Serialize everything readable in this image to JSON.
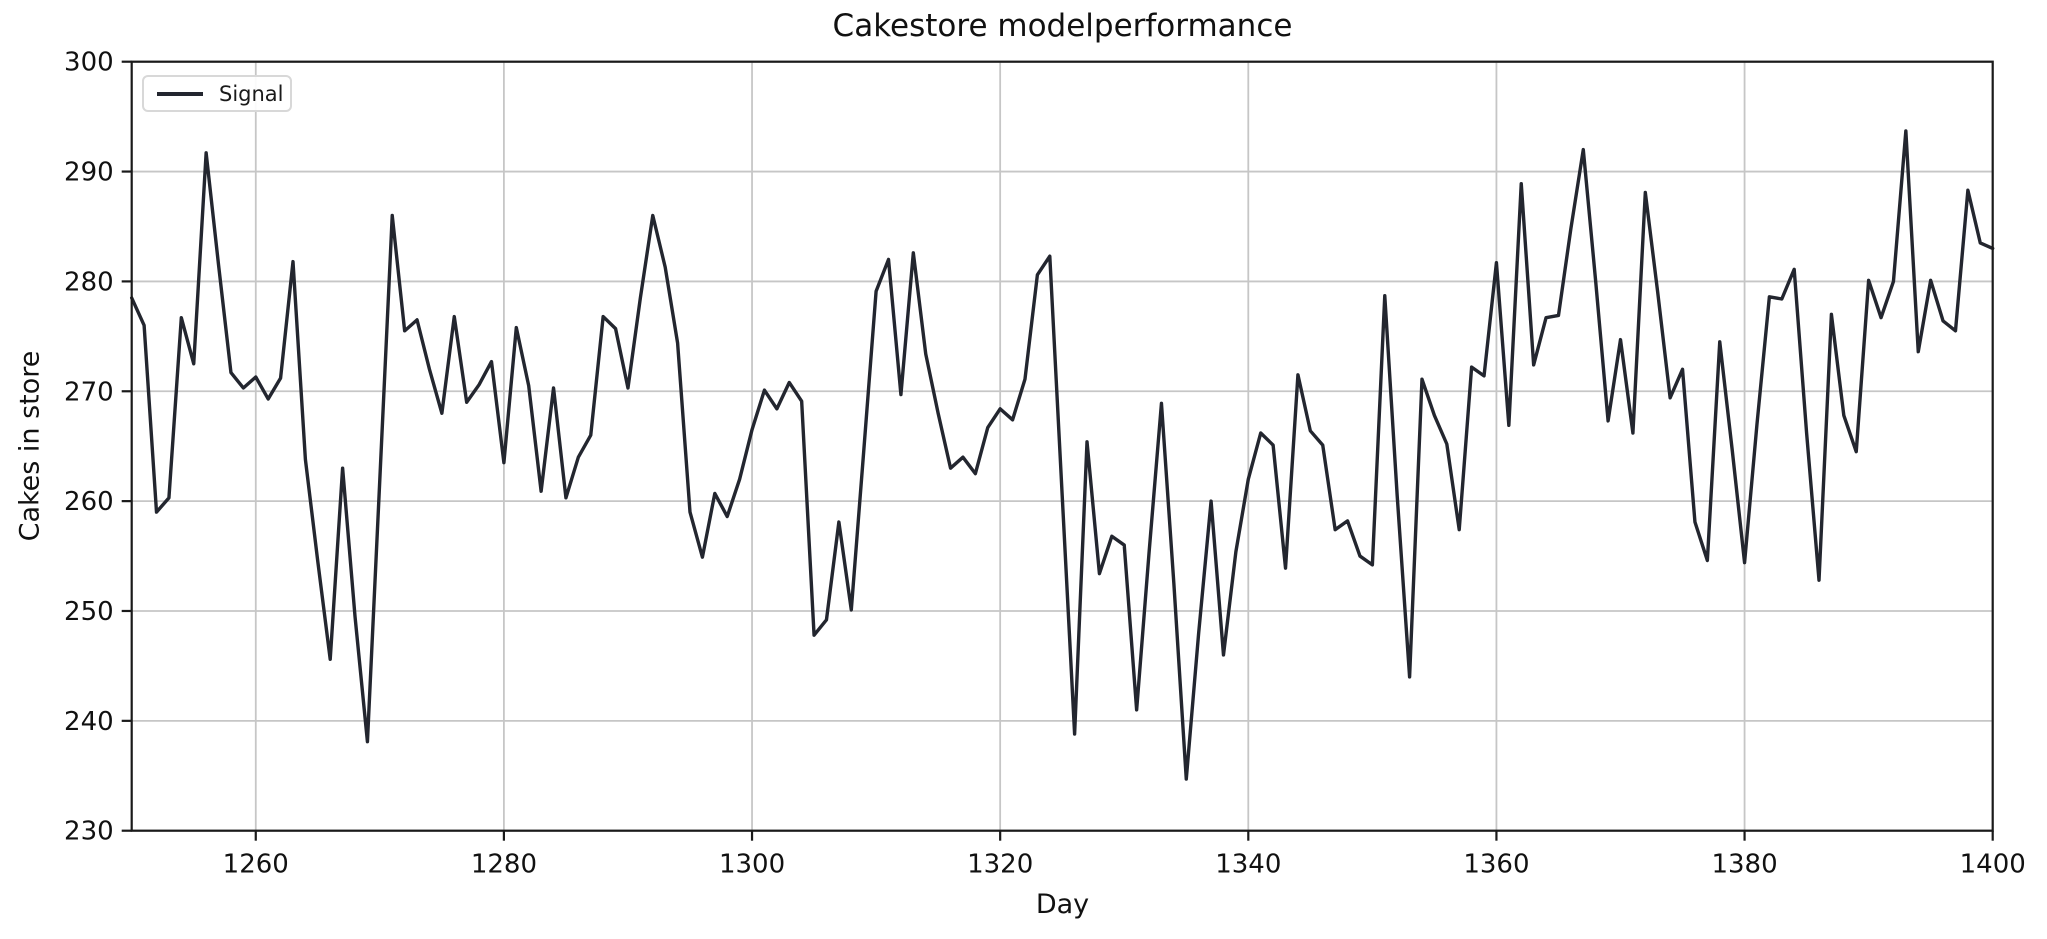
{
  "chart_data": {
    "type": "line",
    "title": "Cakestore modelperformance",
    "xlabel": "Day",
    "ylabel": "Cakes in store",
    "xlim": [
      1250,
      1400
    ],
    "ylim": [
      230,
      300
    ],
    "xticks": [
      1260,
      1280,
      1300,
      1320,
      1340,
      1360,
      1380,
      1400
    ],
    "yticks": [
      230,
      240,
      250,
      260,
      270,
      280,
      290,
      300
    ],
    "grid": true,
    "legend": {
      "position": "upper-left",
      "entries": [
        "Signal"
      ]
    },
    "colors": {
      "line": "#23262f",
      "grid": "#c6c6c6",
      "spine": "#1a1a1a",
      "text": "#111111",
      "legend_border": "#d8d8d8"
    },
    "series": [
      {
        "name": "Signal",
        "x": [
          1250,
          1251,
          1252,
          1253,
          1254,
          1255,
          1256,
          1257,
          1258,
          1259,
          1260,
          1261,
          1262,
          1263,
          1264,
          1265,
          1266,
          1267,
          1268,
          1269,
          1270,
          1271,
          1272,
          1273,
          1274,
          1275,
          1276,
          1277,
          1278,
          1279,
          1280,
          1281,
          1282,
          1283,
          1284,
          1285,
          1286,
          1287,
          1288,
          1289,
          1290,
          1291,
          1292,
          1293,
          1294,
          1295,
          1296,
          1297,
          1298,
          1299,
          1300,
          1301,
          1302,
          1303,
          1304,
          1305,
          1306,
          1307,
          1308,
          1309,
          1310,
          1311,
          1312,
          1313,
          1314,
          1315,
          1316,
          1317,
          1318,
          1319,
          1320,
          1321,
          1322,
          1323,
          1324,
          1325,
          1326,
          1327,
          1328,
          1329,
          1330,
          1331,
          1332,
          1333,
          1334,
          1335,
          1336,
          1337,
          1338,
          1339,
          1340,
          1341,
          1342,
          1343,
          1344,
          1345,
          1346,
          1347,
          1348,
          1349,
          1350,
          1351,
          1352,
          1353,
          1354,
          1355,
          1356,
          1357,
          1358,
          1359,
          1360,
          1361,
          1362,
          1363,
          1364,
          1365,
          1366,
          1367,
          1368,
          1369,
          1370,
          1371,
          1372,
          1373,
          1374,
          1375,
          1376,
          1377,
          1378,
          1379,
          1380,
          1381,
          1382,
          1383,
          1384,
          1385,
          1386,
          1387,
          1388,
          1389,
          1390,
          1391,
          1392,
          1393,
          1394,
          1395,
          1396,
          1397,
          1398,
          1399,
          1400
        ],
        "values": [
          278.5,
          276.0,
          259.0,
          260.3,
          276.7,
          272.5,
          291.7,
          281.5,
          271.7,
          270.3,
          271.3,
          269.3,
          271.2,
          281.8,
          263.8,
          254.5,
          245.6,
          263.0,
          249.5,
          238.1,
          262.0,
          286.0,
          275.5,
          276.5,
          272.0,
          268.0,
          276.8,
          269.0,
          270.6,
          272.7,
          263.5,
          275.8,
          270.5,
          260.9,
          270.3,
          260.3,
          264.0,
          266.0,
          276.8,
          275.7,
          270.3,
          278.5,
          286.0,
          281.3,
          274.4,
          259.0,
          254.9,
          260.7,
          258.6,
          262.0,
          266.5,
          270.1,
          268.4,
          270.8,
          269.1,
          247.8,
          249.2,
          258.1,
          250.1,
          264.5,
          279.1,
          282.0,
          269.7,
          282.6,
          273.4,
          268.0,
          263.0,
          264.0,
          262.5,
          266.7,
          268.4,
          267.4,
          271.1,
          280.6,
          282.3,
          260.5,
          238.8,
          265.4,
          253.4,
          256.8,
          256.0,
          241.0,
          255.3,
          268.9,
          252.5,
          234.7,
          248.0,
          260.0,
          246.0,
          255.4,
          262.0,
          266.2,
          265.1,
          253.9,
          271.5,
          266.4,
          265.1,
          257.4,
          258.2,
          255.0,
          254.2,
          278.7,
          260.5,
          244.0,
          271.1,
          267.8,
          265.2,
          257.4,
          272.2,
          271.4,
          281.7,
          266.9,
          288.9,
          272.4,
          276.7,
          276.9,
          284.8,
          292.0,
          280.0,
          267.3,
          274.7,
          266.2,
          288.1,
          279.0,
          269.4,
          272.0,
          258.1,
          254.6,
          274.5,
          264.7,
          254.4,
          267.0,
          278.6,
          278.4,
          281.1,
          266.2,
          252.8,
          277.0,
          267.8,
          264.5,
          280.1,
          276.7,
          280.0,
          293.7,
          273.6,
          280.1,
          276.4,
          275.5,
          288.3,
          283.5,
          283.0
        ]
      }
    ]
  }
}
